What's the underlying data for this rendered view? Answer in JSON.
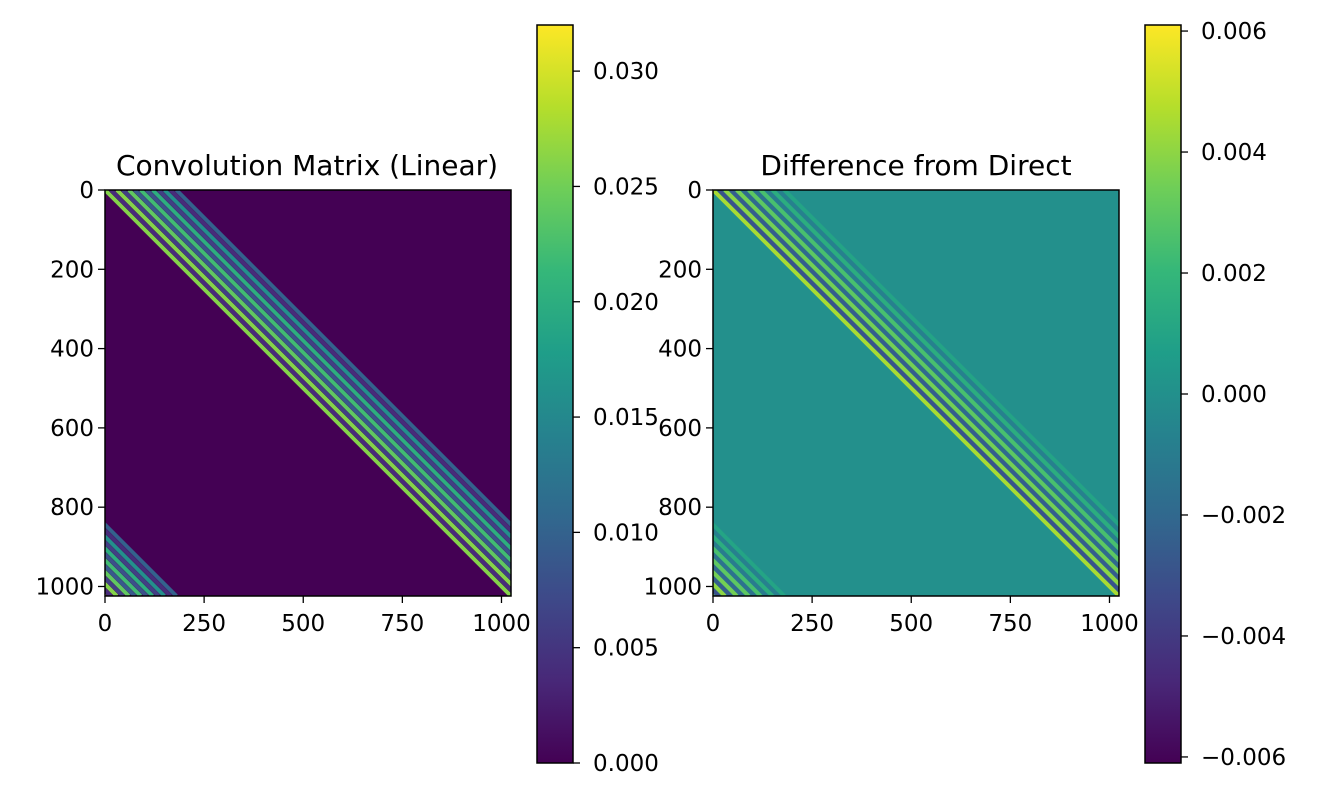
{
  "colormap": {
    "name": "viridis",
    "stops": [
      "#440154",
      "#482878",
      "#3e4989",
      "#31688e",
      "#26828e",
      "#1f9e89",
      "#35b779",
      "#6ece58",
      "#b5de2b",
      "#fde725"
    ]
  },
  "chart_data": [
    {
      "type": "heatmap",
      "title": "Convolution Matrix (Linear)",
      "xlabel": "",
      "ylabel": "",
      "matrix_size": 1024,
      "xlim": [
        0,
        1024
      ],
      "ylim": [
        1024,
        0
      ],
      "xticks": [
        0,
        250,
        500,
        750,
        1000
      ],
      "xtick_labels": [
        "0",
        "250",
        "500",
        "750",
        "1000"
      ],
      "yticks": [
        0,
        200,
        400,
        600,
        800,
        1000
      ],
      "ytick_labels": [
        "0",
        "200",
        "400",
        "600",
        "800",
        "1000"
      ],
      "background_value": 0.0,
      "band_offsets": [
        0,
        15,
        30,
        45,
        60,
        75,
        90,
        105,
        120,
        135,
        150,
        165,
        180
      ],
      "band_values": [
        0.026,
        0.004,
        0.026,
        0.006,
        0.024,
        0.009,
        0.022,
        0.008,
        0.02,
        0.006,
        0.016,
        0.004,
        0.01
      ],
      "colorbar": {
        "min": 0.0,
        "max": 0.032,
        "ticks": [
          0.0,
          0.005,
          0.01,
          0.015,
          0.02,
          0.025,
          0.03
        ],
        "tick_labels": [
          "0.000",
          "0.005",
          "0.010",
          "0.015",
          "0.020",
          "0.025",
          "0.030"
        ]
      }
    },
    {
      "type": "heatmap",
      "title": "Difference from Direct",
      "xlabel": "",
      "ylabel": "",
      "matrix_size": 1024,
      "xlim": [
        0,
        1024
      ],
      "ylim": [
        1024,
        0
      ],
      "xticks": [
        0,
        250,
        500,
        750,
        1000
      ],
      "xtick_labels": [
        "0",
        "250",
        "500",
        "750",
        "1000"
      ],
      "yticks": [
        0,
        200,
        400,
        600,
        800,
        1000
      ],
      "ytick_labels": [
        "0",
        "200",
        "400",
        "600",
        "800",
        "1000"
      ],
      "background_value": 0.0,
      "band_offsets": [
        0,
        15,
        30,
        45,
        60,
        75,
        90,
        105,
        120,
        135,
        150,
        165,
        180
      ],
      "band_values": [
        0.0045,
        -0.003,
        0.004,
        -0.0025,
        0.0035,
        -0.002,
        0.003,
        -0.0015,
        0.0025,
        -0.001,
        0.0015,
        -0.0008,
        0.001
      ],
      "colorbar": {
        "min": -0.0061,
        "max": 0.0061,
        "ticks": [
          -0.006,
          -0.004,
          -0.002,
          0.0,
          0.002,
          0.004,
          0.006
        ],
        "tick_labels": [
          "−0.006",
          "−0.004",
          "−0.002",
          "0.000",
          "0.002",
          "0.004",
          "0.006"
        ]
      }
    }
  ]
}
